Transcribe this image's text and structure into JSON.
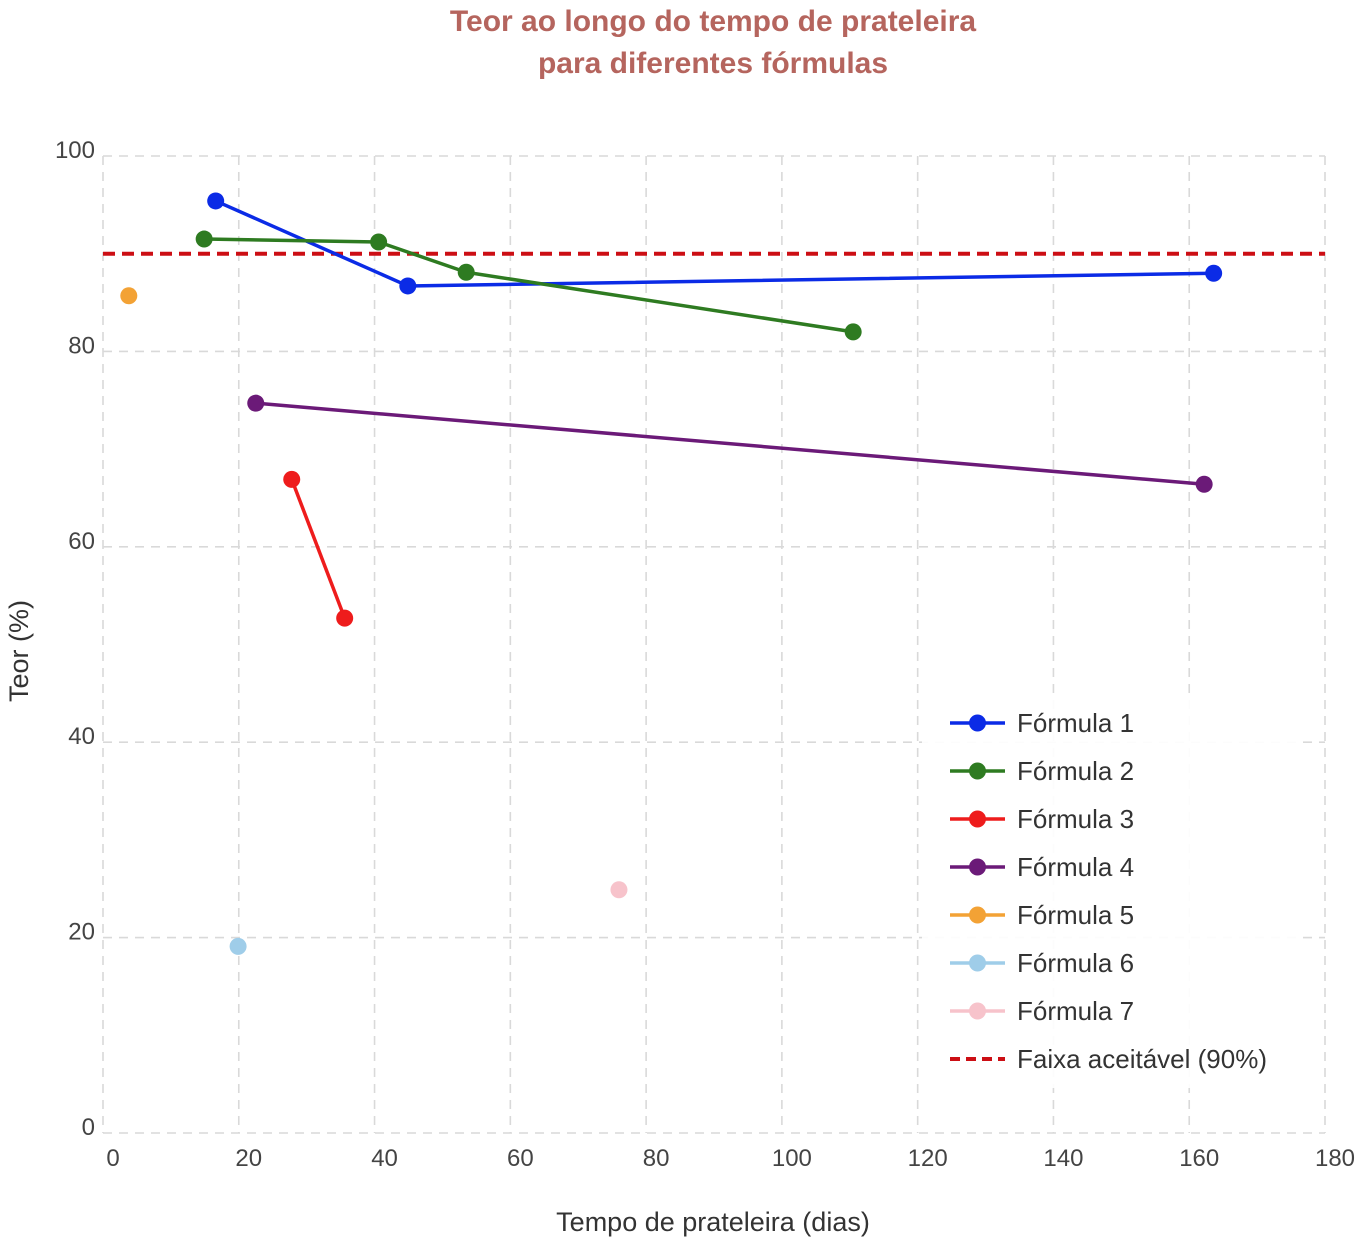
{
  "chart_data": {
    "type": "line",
    "title_lines": [
      "Teor ao longo do tempo de prateleira",
      "para diferentes fórmulas"
    ],
    "xlabel": "Tempo de prateleira (dias)",
    "ylabel": "Teor (%)",
    "xlim": [
      0,
      180
    ],
    "ylim": [
      0,
      100
    ],
    "xticks": [
      0,
      20,
      40,
      60,
      80,
      100,
      120,
      140,
      160,
      180
    ],
    "yticks": [
      0,
      20,
      40,
      60,
      80,
      100
    ],
    "grid": true,
    "legend_position": "bottom-right",
    "series": [
      {
        "name": "Fórmula 1",
        "color": "#0b2be6",
        "points": [
          [
            16.6,
            95.4
          ],
          [
            44.9,
            86.7
          ],
          [
            163.6,
            88.0
          ]
        ]
      },
      {
        "name": "Fórmula 2",
        "color": "#2e7b21",
        "points": [
          [
            14.9,
            91.5
          ],
          [
            40.6,
            91.2
          ],
          [
            53.5,
            88.1
          ],
          [
            110.5,
            82.0
          ]
        ]
      },
      {
        "name": "Fórmula 3",
        "color": "#ee1c1c",
        "points": [
          [
            27.8,
            66.9
          ],
          [
            35.6,
            52.7
          ]
        ]
      },
      {
        "name": "Fórmula 4",
        "color": "#6b1a78",
        "points": [
          [
            22.5,
            74.7
          ],
          [
            162.2,
            66.4
          ]
        ]
      },
      {
        "name": "Fórmula 5",
        "color": "#f3a235",
        "points": [
          [
            3.8,
            85.7
          ]
        ]
      },
      {
        "name": "Fórmula 6",
        "color": "#9fcde9",
        "points": [
          [
            19.9,
            19.1
          ]
        ]
      },
      {
        "name": "Fórmula 7",
        "color": "#f7c3cb",
        "points": [
          [
            76.0,
            24.9
          ]
        ]
      }
    ],
    "reference_line": {
      "name": "Faixa aceitável (90%)",
      "y": 90,
      "color": "#cc0e14",
      "dashed": true
    }
  }
}
